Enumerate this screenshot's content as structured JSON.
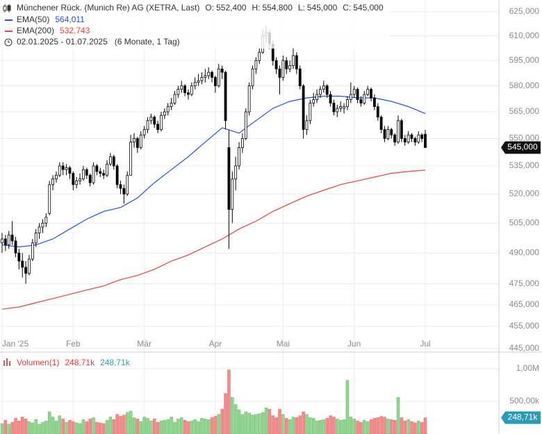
{
  "chart_data": {
    "type": "candlestick",
    "title": "Münchener Rück. (Munich Re) AG (XETRA, Last)",
    "ohlc_keys": [
      "O:",
      "H:",
      "L:",
      "C:"
    ],
    "last_labels": [
      "552,400",
      "554,800",
      "545,000",
      "545,000"
    ],
    "period": "02.01.2025 - 01.07.2025",
    "period_note": "(6 Monate, 1 Tag)",
    "log_scale": true,
    "grid": true,
    "up_color": "#ffffff",
    "down_color": "#000000",
    "candle_stroke": "#000000",
    "ylim": [
      444,
      632.5
    ],
    "yticks": [
      {
        "value": 625,
        "label": "625,000"
      },
      {
        "value": 610,
        "label": "610,000"
      },
      {
        "value": 595,
        "label": "595,000"
      },
      {
        "value": 580,
        "label": "580,000"
      },
      {
        "value": 565,
        "label": "565,000"
      },
      {
        "value": 550,
        "label": "550,000"
      },
      {
        "value": 535,
        "label": "535,000"
      },
      {
        "value": 520,
        "label": "520,000"
      },
      {
        "value": 505,
        "label": "505,000"
      },
      {
        "value": 490,
        "label": "490,000"
      },
      {
        "value": 475,
        "label": "475,000"
      },
      {
        "value": 465,
        "label": "465,000"
      },
      {
        "value": 455,
        "label": "455,000"
      },
      {
        "value": 445,
        "label": "445,000"
      }
    ],
    "xlim": [
      0,
      125
    ],
    "xticks": [
      {
        "value": 0,
        "label": "Jan '25"
      },
      {
        "value": 21,
        "label": "Feb"
      },
      {
        "value": 42,
        "label": "Mär"
      },
      {
        "value": 63,
        "label": "Apr"
      },
      {
        "value": 83,
        "label": "Mai"
      },
      {
        "value": 104,
        "label": "Jun"
      },
      {
        "value": 125,
        "label": "Jul"
      }
    ],
    "candles": [
      [
        495,
        500,
        490,
        497
      ],
      [
        497,
        499,
        491,
        494
      ],
      [
        494,
        501,
        492,
        499
      ],
      [
        499,
        506,
        494,
        496
      ],
      [
        496,
        498,
        488,
        490
      ],
      [
        490,
        492,
        482,
        486
      ],
      [
        486,
        490,
        478,
        483
      ],
      [
        483,
        486,
        475,
        480
      ],
      [
        480,
        489,
        479,
        487
      ],
      [
        487,
        497,
        486,
        495
      ],
      [
        495,
        502,
        493,
        500
      ],
      [
        500,
        505,
        497,
        503
      ],
      [
        503,
        507,
        500,
        505
      ],
      [
        505,
        510,
        503,
        508
      ],
      [
        510,
        527,
        509,
        525
      ],
      [
        525,
        530,
        522,
        528
      ],
      [
        528,
        532,
        526,
        530
      ],
      [
        530,
        537,
        529,
        535
      ],
      [
        535,
        537,
        530,
        533
      ],
      [
        533,
        536,
        530,
        534
      ],
      [
        534,
        535,
        528,
        531
      ],
      [
        531,
        532,
        522,
        525
      ],
      [
        525,
        529,
        523,
        527
      ],
      [
        527,
        531,
        525,
        528
      ],
      [
        528,
        535,
        527,
        533
      ],
      [
        533,
        534,
        528,
        530
      ],
      [
        530,
        531,
        524,
        526
      ],
      [
        526,
        537,
        525,
        535
      ],
      [
        535,
        536,
        530,
        532
      ],
      [
        532,
        534,
        529,
        531
      ],
      [
        531,
        533,
        528,
        530
      ],
      [
        530,
        538,
        529,
        536
      ],
      [
        536,
        542,
        535,
        540
      ],
      [
        540,
        541,
        533,
        535
      ],
      [
        535,
        536,
        523,
        525
      ],
      [
        525,
        527,
        520,
        523
      ],
      [
        523,
        525,
        515,
        520
      ],
      [
        520,
        532,
        519,
        530
      ],
      [
        530,
        552,
        530,
        548
      ],
      [
        548,
        553,
        545,
        550
      ],
      [
        550,
        551,
        542,
        545
      ],
      [
        545,
        554,
        544,
        552
      ],
      [
        552,
        557,
        550,
        555
      ],
      [
        555,
        562,
        553,
        560
      ],
      [
        560,
        564,
        558,
        562
      ],
      [
        562,
        563,
        556,
        558
      ],
      [
        558,
        560,
        553,
        555
      ],
      [
        555,
        565,
        554,
        563
      ],
      [
        563,
        567,
        561,
        565
      ],
      [
        565,
        570,
        563,
        568
      ],
      [
        568,
        573,
        566,
        570
      ],
      [
        570,
        577,
        569,
        575
      ],
      [
        575,
        580,
        573,
        578
      ],
      [
        578,
        583,
        576,
        580
      ],
      [
        580,
        581,
        574,
        576
      ],
      [
        576,
        578,
        572,
        575
      ],
      [
        575,
        582,
        574,
        580
      ],
      [
        580,
        585,
        578,
        582
      ],
      [
        582,
        587,
        580,
        583
      ],
      [
        583,
        588,
        581,
        585
      ],
      [
        585,
        590,
        582,
        586
      ],
      [
        586,
        591,
        584,
        588
      ],
      [
        588,
        589,
        582,
        585
      ],
      [
        585,
        586,
        576,
        580
      ],
      [
        580,
        593,
        579,
        590
      ],
      [
        590,
        592,
        584,
        588
      ],
      [
        588,
        589,
        555,
        560
      ],
      [
        545,
        555,
        492,
        512
      ],
      [
        512,
        532,
        505,
        528
      ],
      [
        528,
        540,
        522,
        535
      ],
      [
        535,
        548,
        533,
        545
      ],
      [
        545,
        553,
        542,
        550
      ],
      [
        550,
        567,
        549,
        565
      ],
      [
        565,
        582,
        563,
        580
      ],
      [
        580,
        592,
        578,
        590
      ],
      [
        590,
        597,
        587,
        595
      ],
      [
        595,
        603,
        593,
        600
      ],
      [
        600,
        614,
        599,
        610
      ],
      [
        610,
        616,
        606,
        612
      ],
      [
        612,
        614,
        602,
        605
      ],
      [
        605,
        607,
        592,
        595
      ],
      [
        595,
        597,
        587,
        590
      ],
      [
        590,
        592,
        575,
        585
      ],
      [
        585,
        598,
        583,
        595
      ],
      [
        595,
        597,
        587,
        590
      ],
      [
        590,
        595,
        588,
        592
      ],
      [
        592,
        603,
        590,
        598
      ],
      [
        598,
        600,
        587,
        590
      ],
      [
        590,
        592,
        578,
        580
      ],
      [
        580,
        581,
        550,
        555
      ],
      [
        555,
        563,
        552,
        560
      ],
      [
        560,
        572,
        558,
        570
      ],
      [
        570,
        576,
        568,
        572
      ],
      [
        572,
        578,
        570,
        575
      ],
      [
        575,
        580,
        573,
        578
      ],
      [
        578,
        583,
        576,
        580
      ],
      [
        580,
        581,
        573,
        575
      ],
      [
        575,
        577,
        568,
        570
      ],
      [
        570,
        572,
        563,
        565
      ],
      [
        565,
        569,
        562,
        567
      ],
      [
        567,
        571,
        565,
        568
      ],
      [
        567,
        570,
        564,
        568
      ],
      [
        568,
        574,
        566,
        572
      ],
      [
        572,
        582,
        570,
        575
      ],
      [
        575,
        580,
        573,
        578
      ],
      [
        578,
        579,
        570,
        572
      ],
      [
        572,
        574,
        568,
        570
      ],
      [
        570,
        577,
        569,
        575
      ],
      [
        575,
        580,
        574,
        578
      ],
      [
        578,
        579,
        571,
        573
      ],
      [
        573,
        575,
        566,
        568
      ],
      [
        568,
        570,
        560,
        562
      ],
      [
        562,
        563,
        553,
        555
      ],
      [
        555,
        557,
        548,
        550
      ],
      [
        550,
        557,
        549,
        555
      ],
      [
        555,
        556,
        550,
        552
      ],
      [
        552,
        553,
        546,
        548
      ],
      [
        548,
        563,
        547,
        560
      ],
      [
        560,
        561,
        548,
        550
      ],
      [
        550,
        552,
        546,
        548
      ],
      [
        548,
        554,
        547,
        552
      ],
      [
        552,
        553,
        548,
        550
      ],
      [
        550,
        551,
        546,
        548
      ],
      [
        548,
        554,
        547,
        552
      ],
      [
        552,
        553,
        548,
        550
      ],
      [
        552.4,
        554.8,
        545,
        545
      ]
    ],
    "series": [
      {
        "name": "EMA(50)",
        "color": "#2450e0",
        "last_label": "564,011",
        "x": [
          0,
          5,
          10,
          15,
          20,
          25,
          30,
          35,
          40,
          45,
          50,
          55,
          60,
          65,
          70,
          75,
          80,
          85,
          90,
          95,
          100,
          105,
          110,
          115,
          120,
          125
        ],
        "values": [
          494,
          493,
          494,
          497,
          502,
          507,
          511,
          513,
          518,
          526,
          533,
          540,
          548,
          556,
          553,
          560,
          567,
          571,
          573,
          574,
          574,
          573,
          573,
          571,
          568,
          564.011
        ]
      },
      {
        "name": "EMA(200)",
        "color": "#e8413a",
        "last_label": "532,743",
        "x": [
          0,
          5,
          10,
          15,
          20,
          25,
          30,
          35,
          40,
          45,
          50,
          55,
          60,
          65,
          70,
          75,
          80,
          85,
          90,
          95,
          100,
          105,
          110,
          115,
          120,
          125
        ],
        "values": [
          463,
          464,
          466,
          468,
          470,
          472,
          474,
          477,
          479,
          482,
          486,
          489,
          493,
          497,
          502,
          506,
          511,
          515,
          519,
          522,
          525,
          527,
          529,
          531,
          532,
          532.743
        ]
      }
    ],
    "volume": {
      "name": "Volumen(1)",
      "up_color": "#8fd48f",
      "down_color": "#f28b8b",
      "last_label": "248,71k",
      "label_color": "#2a9bb5",
      "ylim": [
        0,
        1220000
      ],
      "yticks": [
        {
          "value": 1000000,
          "label": "1,00M"
        },
        {
          "value": 500000,
          "label": "500,00k"
        }
      ],
      "values": [
        160000,
        210000,
        150000,
        180000,
        240000,
        200000,
        260000,
        230000,
        190000,
        170000,
        220000,
        150000,
        180000,
        200000,
        340000,
        260000,
        200000,
        280000,
        230000,
        180000,
        210000,
        190000,
        170000,
        160000,
        220000,
        190000,
        230000,
        250000,
        180000,
        170000,
        160000,
        210000,
        260000,
        220000,
        300000,
        270000,
        290000,
        330000,
        350000,
        250000,
        230000,
        190000,
        260000,
        240000,
        200000,
        230000,
        180000,
        200000,
        210000,
        220000,
        260000,
        180000,
        230000,
        250000,
        210000,
        190000,
        200000,
        220000,
        190000,
        240000,
        230000,
        220000,
        250000,
        270000,
        300000,
        380000,
        620000,
        980000,
        560000,
        450000,
        370000,
        300000,
        340000,
        320000,
        290000,
        300000,
        310000,
        330000,
        400000,
        380000,
        280000,
        250000,
        380000,
        300000,
        240000,
        220000,
        260000,
        250000,
        280000,
        340000,
        300000,
        250000,
        240000,
        200000,
        210000,
        220000,
        240000,
        280000,
        260000,
        230000,
        210000,
        220000,
        820000,
        260000,
        230000,
        200000,
        180000,
        210000,
        190000,
        220000,
        240000,
        250000,
        270000,
        260000,
        230000,
        220000,
        210000,
        560000,
        250000,
        200000,
        220000,
        190000,
        170000,
        200000,
        180000,
        248710
      ]
    }
  }
}
